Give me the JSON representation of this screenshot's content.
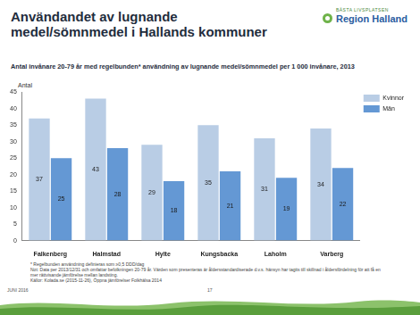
{
  "header": {
    "title": "Användandet av lugnande\nmedel/sömnmedel i Hallands kommuner",
    "logo_tagline": "BÄSTA LIVSPLATSEN",
    "logo_name": "Region Halland"
  },
  "chart_data": {
    "type": "bar",
    "title": "Antal invånare 20-79 år med regelbunden* användning av lugnande medel/sömnmedel  per 1 000 invånare, 2013",
    "y_label": "Antal",
    "categories": [
      "Falkenberg",
      "Halmstad",
      "Hylte",
      "Kungsbacka",
      "Laholm",
      "Varberg"
    ],
    "series": [
      {
        "name": "Kvinnor",
        "color": "#b9cde5",
        "values": [
          37,
          43,
          29,
          35,
          31,
          34
        ]
      },
      {
        "name": "Män",
        "color": "#6498d4",
        "values": [
          25,
          28,
          18,
          21,
          19,
          22
        ]
      }
    ],
    "ylim": [
      0,
      45
    ],
    "yticks": [
      0,
      5,
      10,
      15,
      20,
      25,
      30,
      35,
      40,
      45
    ],
    "grid": false,
    "legend": "right",
    "data_labels": true
  },
  "footer": {
    "notes": [
      "*    Regelbunden användning definieras som ≥0,5 DDD/dag",
      "Not:  Data per 2013/12/31 och omfattar befolkningen 20-79 år. Värden som presenteras är åldersstandardiserade d.v.s. hänsyn har tagits till skillnad i åldersfördelning för att få en mer rättvisande jämförelse mellan landsting.",
      "Källor:  Kolada.se (2015-11-26), Öppna jämförelser Folkhälsa 2014"
    ],
    "date": "JUNI 2016",
    "page": "17"
  }
}
